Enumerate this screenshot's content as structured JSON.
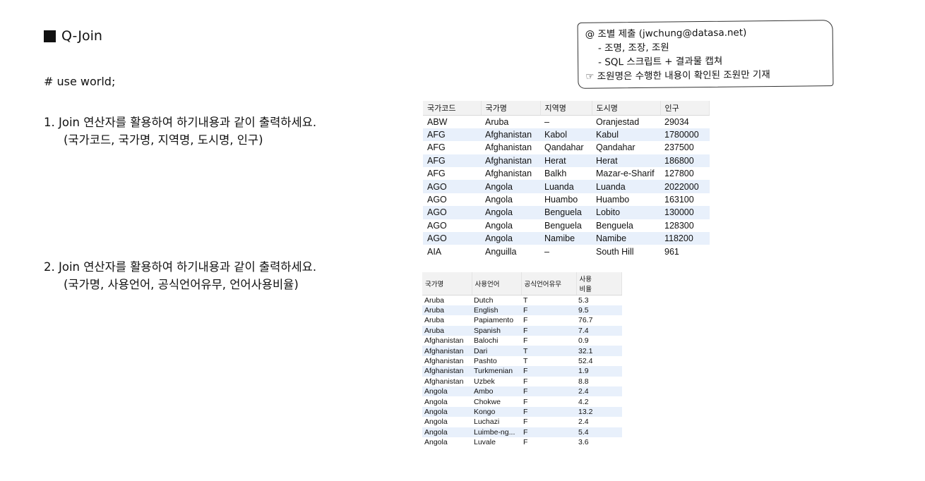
{
  "heading": "Q-Join",
  "use_stmt": "# use world;",
  "question1": {
    "line1": "1. Join 연산자를 활용하여 하기내용과 같이 출력하세요.",
    "line2": "(국가코드, 국가명, 지역명, 도시명, 인구)"
  },
  "question2": {
    "line1": "2. Join 연산자를 활용하여 하기내용과 같이 출력하세요.",
    "line2": "(국가명, 사용언어, 공식언어유무, 언어사용비율)"
  },
  "note": {
    "line1": "@ 조별 제출 (jwchung@datasa.net)",
    "line2": "- 조명, 조장, 조원",
    "line3": "- SQL 스크립트 + 결과물 캡쳐",
    "line4": "☞ 조원명은 수행한 내용이 확인된 조원만 기재"
  },
  "table1": {
    "headers": [
      "국가코드",
      "국가명",
      "지역명",
      "도시명",
      "인구"
    ],
    "rows": [
      [
        "ABW",
        "Aruba",
        "–",
        "Oranjestad",
        "29034"
      ],
      [
        "AFG",
        "Afghanistan",
        "Kabol",
        "Kabul",
        "1780000"
      ],
      [
        "AFG",
        "Afghanistan",
        "Qandahar",
        "Qandahar",
        "237500"
      ],
      [
        "AFG",
        "Afghanistan",
        "Herat",
        "Herat",
        "186800"
      ],
      [
        "AFG",
        "Afghanistan",
        "Balkh",
        "Mazar-e-Sharif",
        "127800"
      ],
      [
        "AGO",
        "Angola",
        "Luanda",
        "Luanda",
        "2022000"
      ],
      [
        "AGO",
        "Angola",
        "Huambo",
        "Huambo",
        "163100"
      ],
      [
        "AGO",
        "Angola",
        "Benguela",
        "Lobito",
        "130000"
      ],
      [
        "AGO",
        "Angola",
        "Benguela",
        "Benguela",
        "128300"
      ],
      [
        "AGO",
        "Angola",
        "Namibe",
        "Namibe",
        "118200"
      ],
      [
        "AIA",
        "Anguilla",
        "–",
        "South Hill",
        "961"
      ]
    ]
  },
  "table2": {
    "headers": [
      "국가명",
      "사용언어",
      "공식언어유무",
      "사용\n비율"
    ],
    "rows": [
      [
        "Aruba",
        "Dutch",
        "T",
        "5.3"
      ],
      [
        "Aruba",
        "English",
        "F",
        "9.5"
      ],
      [
        "Aruba",
        "Papiamento",
        "F",
        "76.7"
      ],
      [
        "Aruba",
        "Spanish",
        "F",
        "7.4"
      ],
      [
        "Afghanistan",
        "Balochi",
        "F",
        "0.9"
      ],
      [
        "Afghanistan",
        "Dari",
        "T",
        "32.1"
      ],
      [
        "Afghanistan",
        "Pashto",
        "T",
        "52.4"
      ],
      [
        "Afghanistan",
        "Turkmenian",
        "F",
        "1.9"
      ],
      [
        "Afghanistan",
        "Uzbek",
        "F",
        "8.8"
      ],
      [
        "Angola",
        "Ambo",
        "F",
        "2.4"
      ],
      [
        "Angola",
        "Chokwe",
        "F",
        "4.2"
      ],
      [
        "Angola",
        "Kongo",
        "F",
        "13.2"
      ],
      [
        "Angola",
        "Luchazi",
        "F",
        "2.4"
      ],
      [
        "Angola",
        "Luimbe-ng...",
        "F",
        "5.4"
      ],
      [
        "Angola",
        "Luvale",
        "F",
        "3.6"
      ]
    ]
  }
}
